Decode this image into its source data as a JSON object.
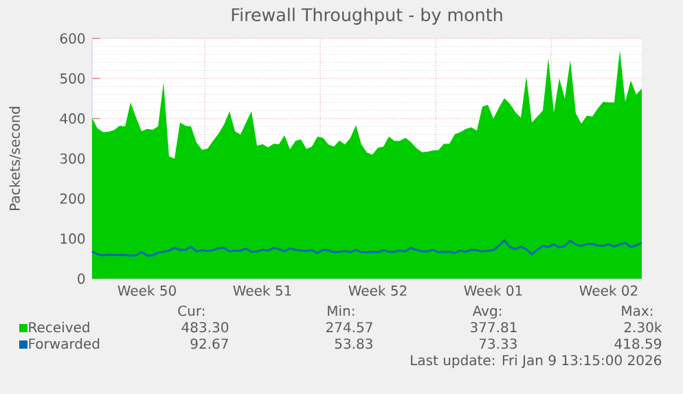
{
  "chart_data": {
    "type": "area",
    "title": "Firewall Throughput - by month",
    "ylabel": "Packets/second",
    "categories": [
      null,
      null,
      null,
      null,
      null,
      null,
      null,
      null,
      null,
      null,
      "Week 50",
      null,
      null,
      null,
      null,
      null,
      null,
      null,
      null,
      null,
      null,
      null,
      null,
      null,
      null,
      null,
      null,
      null,
      null,
      null,
      null,
      "Week 51",
      null,
      null,
      null,
      null,
      null,
      null,
      null,
      null,
      null,
      null,
      null,
      null,
      null,
      null,
      null,
      null,
      null,
      null,
      null,
      null,
      "Week 52",
      null,
      null,
      null,
      null,
      null,
      null,
      null,
      null,
      null,
      null,
      null,
      null,
      null,
      null,
      null,
      null,
      null,
      null,
      null,
      null,
      "Week 01",
      null,
      null,
      null,
      null,
      null,
      null,
      null,
      null,
      null,
      null,
      null,
      null,
      null,
      null,
      null,
      null,
      null,
      null,
      null,
      null,
      "Week 02",
      null,
      null,
      null,
      null,
      null,
      null
    ],
    "ylim": [
      0,
      600
    ],
    "yticks": [
      0,
      100,
      200,
      300,
      400,
      500,
      600
    ],
    "grid": true,
    "legend": "bottom left",
    "series": [
      {
        "name": "Received",
        "color": "#00cc00",
        "values": [
          401,
          375,
          366,
          367,
          371,
          382,
          380,
          440,
          403,
          368,
          374,
          372,
          380,
          490,
          305,
          300,
          390,
          382,
          380,
          340,
          322,
          325,
          344,
          362,
          385,
          418,
          368,
          360,
          390,
          418,
          332,
          336,
          328,
          337,
          336,
          358,
          323,
          344,
          348,
          324,
          330,
          355,
          352,
          335,
          330,
          345,
          335,
          352,
          383,
          335,
          315,
          310,
          327,
          330,
          355,
          344,
          344,
          352,
          341,
          326,
          316,
          317,
          320,
          321,
          337,
          337,
          361,
          366,
          374,
          378,
          370,
          430,
          434,
          400,
          427,
          451,
          437,
          416,
          402,
          505,
          390,
          405,
          420,
          550,
          415,
          500,
          450,
          545,
          413,
          387,
          407,
          405,
          425,
          442,
          440,
          440,
          570,
          442,
          495,
          460,
          475
        ]
      },
      {
        "name": "Forwarded",
        "type": "line",
        "color": "#0066b3",
        "values": [
          68,
          61,
          58,
          60,
          59,
          59,
          59,
          58,
          58,
          67,
          58,
          58,
          65,
          67,
          70,
          77,
          72,
          72,
          80,
          68,
          71,
          69,
          71,
          76,
          77,
          68,
          70,
          70,
          75,
          67,
          68,
          72,
          70,
          77,
          74,
          68,
          76,
          72,
          70,
          69,
          71,
          64,
          72,
          71,
          66,
          67,
          69,
          66,
          72,
          66,
          66,
          67,
          66,
          71,
          67,
          67,
          70,
          68,
          77,
          72,
          68,
          68,
          72,
          66,
          67,
          67,
          64,
          70,
          67,
          72,
          71,
          68,
          70,
          71,
          82,
          96,
          79,
          74,
          80,
          73,
          61,
          72,
          82,
          79,
          86,
          78,
          82,
          95,
          85,
          82,
          86,
          87,
          83,
          82,
          86,
          80,
          86,
          90,
          79,
          83,
          90
        ]
      }
    ],
    "annotations": [
      "Cur:",
      "Min:",
      "Avg:",
      "Max:",
      "483.30",
      "274.57",
      "377.81",
      "2.30k",
      "92.67",
      "53.83",
      "73.33",
      "418.59",
      "Last update: Fri Jan  9 13:15:00 2026"
    ]
  }
}
